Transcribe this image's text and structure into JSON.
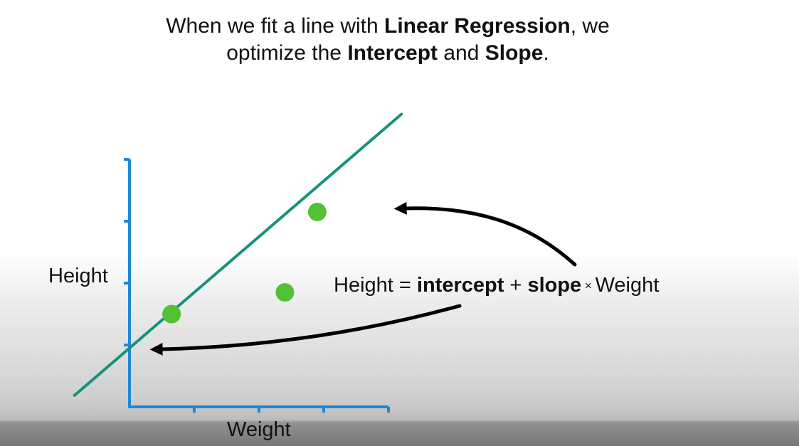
{
  "caption": {
    "line1": {
      "prefix": "When we fit a line with ",
      "emphasis": "Linear Regression",
      "suffix": ", we"
    },
    "line2": {
      "prefix": "optimize the ",
      "emphasis1": "Intercept",
      "middle": " and ",
      "emphasis2": "Slope",
      "suffix": "."
    }
  },
  "chart_data": {
    "type": "scatter",
    "xlabel": "Weight",
    "ylabel": "Height",
    "xlim": [
      0,
      4
    ],
    "ylim": [
      0,
      4
    ],
    "points": [
      {
        "x": 0.65,
        "y": 1.5
      },
      {
        "x": 2.4,
        "y": 1.85
      },
      {
        "x": 2.9,
        "y": 3.15
      }
    ],
    "fit_line": {
      "intercept": 0.95,
      "slope": 0.9,
      "x_from": -0.85,
      "x_to": 4.2
    },
    "colors": {
      "axis": "#1e88d6",
      "points": "#52c234",
      "line": "#16927c",
      "arrows": "#000000"
    }
  },
  "equation": {
    "lhs": "Height = ",
    "intercept": "intercept",
    "plus": " + ",
    "slope": "slope",
    "times": " × ",
    "variable": "Weight"
  }
}
